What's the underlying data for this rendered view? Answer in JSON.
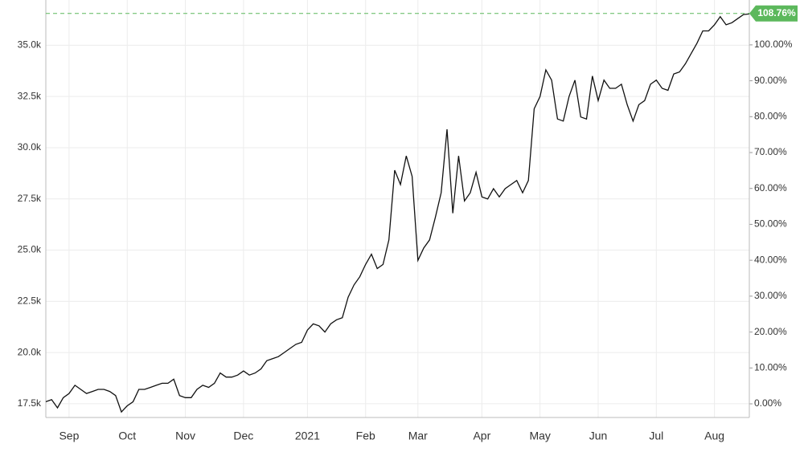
{
  "chart_data": {
    "type": "line",
    "categories": [
      null,
      null,
      null,
      null,
      "Sep",
      null,
      null,
      null,
      null,
      null,
      null,
      null,
      null,
      null,
      "Oct",
      null,
      null,
      null,
      null,
      null,
      null,
      null,
      null,
      null,
      "Nov",
      null,
      null,
      null,
      null,
      null,
      null,
      null,
      null,
      null,
      "Dec",
      null,
      null,
      null,
      null,
      null,
      null,
      null,
      null,
      null,
      null,
      "2021",
      null,
      null,
      null,
      null,
      null,
      null,
      null,
      null,
      null,
      "Feb",
      null,
      null,
      null,
      null,
      null,
      null,
      null,
      null,
      "Mar",
      null,
      null,
      null,
      null,
      null,
      null,
      null,
      null,
      null,
      null,
      "Apr",
      null,
      null,
      null,
      null,
      null,
      null,
      null,
      null,
      null,
      "May",
      null,
      null,
      null,
      null,
      null,
      null,
      null,
      null,
      null,
      "Jun",
      null,
      null,
      null,
      null,
      null,
      null,
      null,
      null,
      null,
      "Jul",
      null,
      null,
      null,
      null,
      null,
      null,
      null,
      null,
      null,
      "Aug",
      null,
      null,
      null,
      null,
      null,
      null
    ],
    "series": [
      {
        "color": "#111111",
        "values": [
          17600,
          17700,
          17300,
          17800,
          18000,
          18400,
          18200,
          18000,
          18100,
          18200,
          18200,
          18100,
          17900,
          17100,
          17400,
          17600,
          18200,
          18200,
          18300,
          18400,
          18500,
          18500,
          18700,
          17900,
          17800,
          17800,
          18200,
          18400,
          18300,
          18500,
          19000,
          18800,
          18800,
          18900,
          19100,
          18900,
          19000,
          19200,
          19600,
          19700,
          19800,
          20000,
          20200,
          20400,
          20500,
          21100,
          21400,
          21300,
          21000,
          21400,
          21600,
          21700,
          22700,
          23300,
          23700,
          24300,
          24800,
          24100,
          24300,
          25500,
          28900,
          28200,
          29600,
          28600,
          24500,
          25100,
          25500,
          26600,
          27800,
          30900,
          26800,
          29600,
          27400,
          27800,
          28800,
          27600,
          27500,
          28000,
          27600,
          28000,
          28200,
          28400,
          27800,
          28400,
          31900,
          32500,
          33800,
          33300,
          31400,
          31300,
          32500,
          33300,
          31500,
          31400,
          33500,
          32300,
          33300,
          32900,
          32900,
          33100,
          32100,
          31300,
          32100,
          32300,
          33100,
          33300,
          32900,
          32800,
          33600,
          33700,
          34100,
          34600,
          35100,
          35700,
          35700,
          36000,
          36400,
          36000,
          36100,
          36300,
          36500,
          36530
        ]
      }
    ],
    "ylim": [
      16830,
      37210
    ],
    "yticks": [
      {
        "value": 17500,
        "label": "17.5k"
      },
      {
        "value": 20000,
        "label": "20.0k"
      },
      {
        "value": 22500,
        "label": "22.5k"
      },
      {
        "value": 25000,
        "label": "25.0k"
      },
      {
        "value": 27500,
        "label": "27.5k"
      },
      {
        "value": 30000,
        "label": "30.0k"
      },
      {
        "value": 32500,
        "label": "32.5k"
      },
      {
        "value": 35000,
        "label": "35.0k"
      }
    ],
    "y2lim": [
      -3.8,
      112.5
    ],
    "y2ticks": [
      {
        "value": 0,
        "label": "0.00%"
      },
      {
        "value": 10,
        "label": "10.00%"
      },
      {
        "value": 20,
        "label": "20.00%"
      },
      {
        "value": 30,
        "label": "30.00%"
      },
      {
        "value": 40,
        "label": "40.00%"
      },
      {
        "value": 50,
        "label": "50.00%"
      },
      {
        "value": 60,
        "label": "60.00%"
      },
      {
        "value": 70,
        "label": "70.00%"
      },
      {
        "value": 80,
        "label": "80.00%"
      },
      {
        "value": 90,
        "label": "90.00%"
      },
      {
        "value": 100,
        "label": "100.00%"
      }
    ],
    "last_change": {
      "value": 108.76,
      "label": "108.76%",
      "color": "#5cb85c"
    },
    "grid": true
  }
}
